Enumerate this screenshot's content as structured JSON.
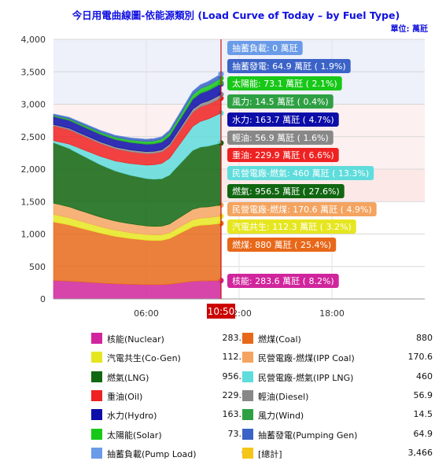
{
  "chart_data": {
    "type": "area",
    "title": "今日用電曲線圖-依能源類別 (Load Curve of Today – by Fuel Type)",
    "unit_label": "單位: 萬瓩",
    "y_ticks": [
      "0",
      "500",
      "1,000",
      "1,500",
      "2,000",
      "2,500",
      "3,000",
      "3,500",
      "4,000"
    ],
    "ylim": [
      0,
      4000
    ],
    "x_ticks": [
      "06:00",
      "12:00",
      "18:00"
    ],
    "x_range_hours": [
      0,
      24
    ],
    "current_time_label": "10:50",
    "current_time_hours": 10.83,
    "stack_order": [
      "核能",
      "燃煤",
      "汽電共生",
      "民營電廠-燃煤",
      "燃氣",
      "民營電廠-燃氣",
      "重油",
      "輕油",
      "水力",
      "風力",
      "太陽能",
      "抽蓄發電",
      "抽蓄負載"
    ],
    "stack_top_x": [
      0,
      1,
      2,
      3,
      4,
      5,
      6,
      6.5,
      7,
      7.5,
      8,
      8.5,
      9,
      9.5,
      10,
      10.83
    ],
    "stack_top_y": [
      2850,
      2800,
      2700,
      2600,
      2520,
      2480,
      2460,
      2470,
      2500,
      2600,
      2800,
      3000,
      3200,
      3300,
      3350,
      3466
    ],
    "series": [
      {
        "name": "核能(Nuclear)",
        "short": "核能",
        "value": "283.6",
        "pct": "8.2%",
        "color": "#d0259c",
        "x": [
          0,
          10.83
        ],
        "y": [
          283.6,
          283.6
        ]
      },
      {
        "name": "燃煤(Coal)",
        "short": "燃煤",
        "value": "880",
        "pct": "25.4%",
        "color": "#e8681a",
        "x": [
          0,
          10.83
        ],
        "y": [
          900,
          880
        ]
      },
      {
        "name": "汽電共生(Co-Gen)",
        "short": "汽電共生",
        "value": "112.3",
        "pct": "3.2%",
        "color": "#e6e620",
        "x": [
          0,
          10.83
        ],
        "y": [
          115,
          112.3
        ]
      },
      {
        "name": "民營電廠-燃煤(IPP Coal)",
        "short": "民營電廠-燃煤",
        "value": "170.6",
        "pct": "4.9%",
        "color": "#f4a460",
        "x": [
          0,
          10.83
        ],
        "y": [
          175,
          170.6
        ]
      },
      {
        "name": "燃氣(LNG)",
        "short": "燃氣",
        "value": "956.5",
        "pct": "27.6%",
        "color": "#116611",
        "x": [
          0,
          10.83
        ],
        "y": [
          930,
          956.5
        ]
      },
      {
        "name": "民營電廠-燃氣(IPP LNG)",
        "short": "民營電廠-燃氣",
        "value": "460",
        "pct": "13.3%",
        "color": "#5fdcdc",
        "x": [
          0,
          10.83
        ],
        "y": [
          30,
          460
        ]
      },
      {
        "name": "重油(Oil)",
        "short": "重油",
        "value": "229.9",
        "pct": "6.6%",
        "color": "#ee2222",
        "x": [
          0,
          10.83
        ],
        "y": [
          230,
          229.9
        ]
      },
      {
        "name": "輕油(Diesel)",
        "short": "輕油",
        "value": "56.9",
        "pct": "1.6%",
        "color": "#888888",
        "x": [
          0,
          10.83
        ],
        "y": [
          20,
          56.9
        ]
      },
      {
        "name": "水力(Hydro)",
        "short": "水力",
        "value": "163.7",
        "pct": "4.7%",
        "color": "#0d0da8",
        "x": [
          0,
          10.83
        ],
        "y": [
          120,
          163.7
        ]
      },
      {
        "name": "風力(Wind)",
        "short": "風力",
        "value": "14.5",
        "pct": "0.4%",
        "color": "#2ea043",
        "x": [
          0,
          10.83
        ],
        "y": [
          20,
          14.5
        ]
      },
      {
        "name": "太陽能(Solar)",
        "short": "太陽能",
        "value": "73.1",
        "pct": "2.1%",
        "color": "#18c818",
        "x": [
          0,
          10.83
        ],
        "y": [
          0,
          73.1
        ]
      },
      {
        "name": "抽蓄發電(Pumping Gen)",
        "short": "抽蓄發電",
        "value": "64.9",
        "pct": "1.9%",
        "color": "#3b63c7",
        "x": [
          0,
          10.83
        ],
        "y": [
          20,
          64.9
        ]
      },
      {
        "name": "抽蓄負載(Pump Load)",
        "short": "抽蓄負載",
        "value": "0",
        "pct": "",
        "color": "#6a9be8",
        "x": [
          0,
          10.83
        ],
        "y": [
          0,
          0
        ]
      },
      {
        "name": "[總計]",
        "short": "總計",
        "value": "3,466",
        "pct": "",
        "color": "#f5c518",
        "x": [],
        "y": []
      }
    ],
    "tooltip_unit": "萬瓩",
    "grid": true,
    "legend_position": "bottom",
    "background_bands": [
      {
        "from": 0,
        "to": 1500,
        "color": "#ffffff"
      },
      {
        "from": 1500,
        "to": 2000,
        "color": "#fde8e8"
      },
      {
        "from": 2000,
        "to": 3000,
        "color": "#fdf0f0"
      },
      {
        "from": 3000,
        "to": 4000,
        "color": "#eef0fa"
      }
    ]
  }
}
